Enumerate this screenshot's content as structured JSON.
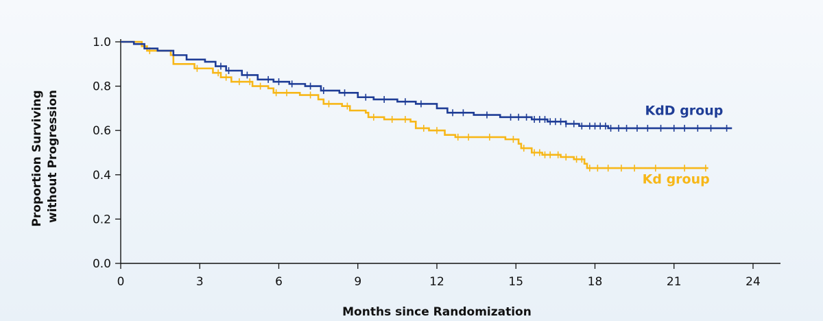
{
  "colors": {
    "kdd": "#1f3d96",
    "kd": "#f7b718",
    "axis": "#111111"
  },
  "chart_data": {
    "type": "line",
    "chart_style": "kaplan-meier step",
    "xlabel": "Months since Randomization",
    "ylabel": [
      "Proportion Surviving",
      "without Progression"
    ],
    "xlim": [
      0,
      24
    ],
    "ylim": [
      0,
      1
    ],
    "x_ticks": [
      0,
      3,
      6,
      9,
      12,
      15,
      18,
      21,
      24
    ],
    "y_ticks": [
      "0.0",
      "0.2",
      "0.4",
      "0.6",
      "0.8",
      "1.0"
    ],
    "grid": false,
    "series": [
      {
        "name": "KdD group",
        "color_key": "kdd",
        "points": [
          [
            0,
            1.0
          ],
          [
            0.5,
            0.99
          ],
          [
            0.9,
            0.97
          ],
          [
            1.4,
            0.96
          ],
          [
            2.0,
            0.94
          ],
          [
            2.5,
            0.92
          ],
          [
            3.2,
            0.91
          ],
          [
            3.6,
            0.89
          ],
          [
            4.0,
            0.87
          ],
          [
            4.6,
            0.85
          ],
          [
            5.2,
            0.83
          ],
          [
            5.8,
            0.82
          ],
          [
            6.4,
            0.81
          ],
          [
            7.0,
            0.8
          ],
          [
            7.6,
            0.78
          ],
          [
            8.3,
            0.77
          ],
          [
            9.0,
            0.75
          ],
          [
            9.6,
            0.74
          ],
          [
            10.5,
            0.73
          ],
          [
            11.2,
            0.72
          ],
          [
            12.0,
            0.7
          ],
          [
            12.4,
            0.68
          ],
          [
            13.4,
            0.67
          ],
          [
            14.4,
            0.66
          ],
          [
            15.6,
            0.65
          ],
          [
            16.2,
            0.64
          ],
          [
            16.9,
            0.63
          ],
          [
            17.4,
            0.62
          ],
          [
            18.5,
            0.61
          ],
          [
            23.2,
            0.61
          ]
        ],
        "censor_x": [
          3.8,
          4.1,
          4.8,
          5.6,
          6.0,
          6.5,
          7.2,
          7.7,
          8.5,
          9.3,
          10.0,
          10.8,
          11.4,
          12.6,
          13.0,
          13.9,
          14.8,
          15.1,
          15.4,
          15.7,
          15.9,
          16.1,
          16.3,
          16.5,
          16.7,
          16.9,
          17.2,
          17.5,
          17.8,
          18.0,
          18.2,
          18.4,
          18.6,
          18.9,
          19.2,
          19.6,
          20.0,
          20.5,
          21.0,
          21.4,
          21.9,
          22.4,
          23.0
        ]
      },
      {
        "name": "Kd group",
        "color_key": "kd",
        "points": [
          [
            0,
            1.0
          ],
          [
            0.8,
            0.98
          ],
          [
            1.0,
            0.96
          ],
          [
            1.9,
            0.94
          ],
          [
            2.0,
            0.9
          ],
          [
            2.8,
            0.88
          ],
          [
            3.5,
            0.86
          ],
          [
            3.8,
            0.84
          ],
          [
            4.2,
            0.82
          ],
          [
            5.0,
            0.8
          ],
          [
            5.6,
            0.79
          ],
          [
            5.8,
            0.77
          ],
          [
            6.8,
            0.76
          ],
          [
            7.5,
            0.74
          ],
          [
            7.7,
            0.72
          ],
          [
            8.4,
            0.71
          ],
          [
            8.7,
            0.69
          ],
          [
            9.3,
            0.68
          ],
          [
            9.4,
            0.66
          ],
          [
            10.0,
            0.65
          ],
          [
            11.0,
            0.64
          ],
          [
            11.2,
            0.61
          ],
          [
            11.7,
            0.6
          ],
          [
            12.3,
            0.58
          ],
          [
            12.7,
            0.57
          ],
          [
            14.6,
            0.56
          ],
          [
            15.1,
            0.54
          ],
          [
            15.2,
            0.52
          ],
          [
            15.6,
            0.5
          ],
          [
            16.0,
            0.49
          ],
          [
            16.7,
            0.48
          ],
          [
            17.2,
            0.47
          ],
          [
            17.6,
            0.45
          ],
          [
            17.7,
            0.43
          ],
          [
            22.3,
            0.43
          ]
        ],
        "censor_x": [
          1.1,
          2.9,
          3.7,
          4.0,
          4.5,
          4.9,
          5.3,
          5.9,
          6.3,
          7.2,
          7.9,
          8.6,
          9.6,
          10.3,
          10.8,
          11.5,
          12.0,
          12.8,
          13.2,
          14.0,
          14.9,
          15.3,
          15.7,
          15.9,
          16.1,
          16.3,
          16.6,
          16.9,
          17.3,
          17.5,
          17.8,
          18.1,
          18.5,
          19.0,
          19.5,
          20.3,
          21.4,
          22.2
        ]
      }
    ],
    "annotations": [
      {
        "text": "KdD group",
        "x": 19.9,
        "y": 0.67,
        "color_key": "kdd"
      },
      {
        "text": "Kd group",
        "x": 19.8,
        "y": 0.36,
        "color_key": "kd"
      }
    ]
  }
}
